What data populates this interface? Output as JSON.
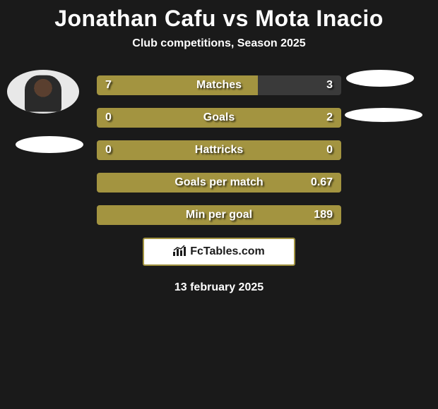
{
  "title": "Jonathan Cafu vs Mota Inacio",
  "subtitle": "Club competitions, Season 2025",
  "colors": {
    "background": "#1a1a1a",
    "bar_olive": "#a39440",
    "bar_neutral": "#3a3a3a",
    "text": "#ffffff",
    "badge_border": "#a39440"
  },
  "stats": [
    {
      "label": "Matches",
      "left_value": "7",
      "right_value": "3",
      "left_fill_pct": 66,
      "right_fill_pct": 0,
      "left_color": "#a39440",
      "right_color": "#3a3a3a"
    },
    {
      "label": "Goals",
      "left_value": "0",
      "right_value": "2",
      "left_fill_pct": 0,
      "right_fill_pct": 0,
      "full_color": "#a39440"
    },
    {
      "label": "Hattricks",
      "left_value": "0",
      "right_value": "0",
      "left_fill_pct": 0,
      "right_fill_pct": 0,
      "full_color": "#a39440"
    },
    {
      "label": "Goals per match",
      "left_value": "",
      "right_value": "0.67",
      "left_fill_pct": 0,
      "right_fill_pct": 0,
      "full_color": "#a39440"
    },
    {
      "label": "Min per goal",
      "left_value": "",
      "right_value": "189",
      "left_fill_pct": 0,
      "right_fill_pct": 0,
      "full_color": "#a39440"
    }
  ],
  "footer": {
    "brand": "FcTables.com"
  },
  "date": "13 february 2025"
}
